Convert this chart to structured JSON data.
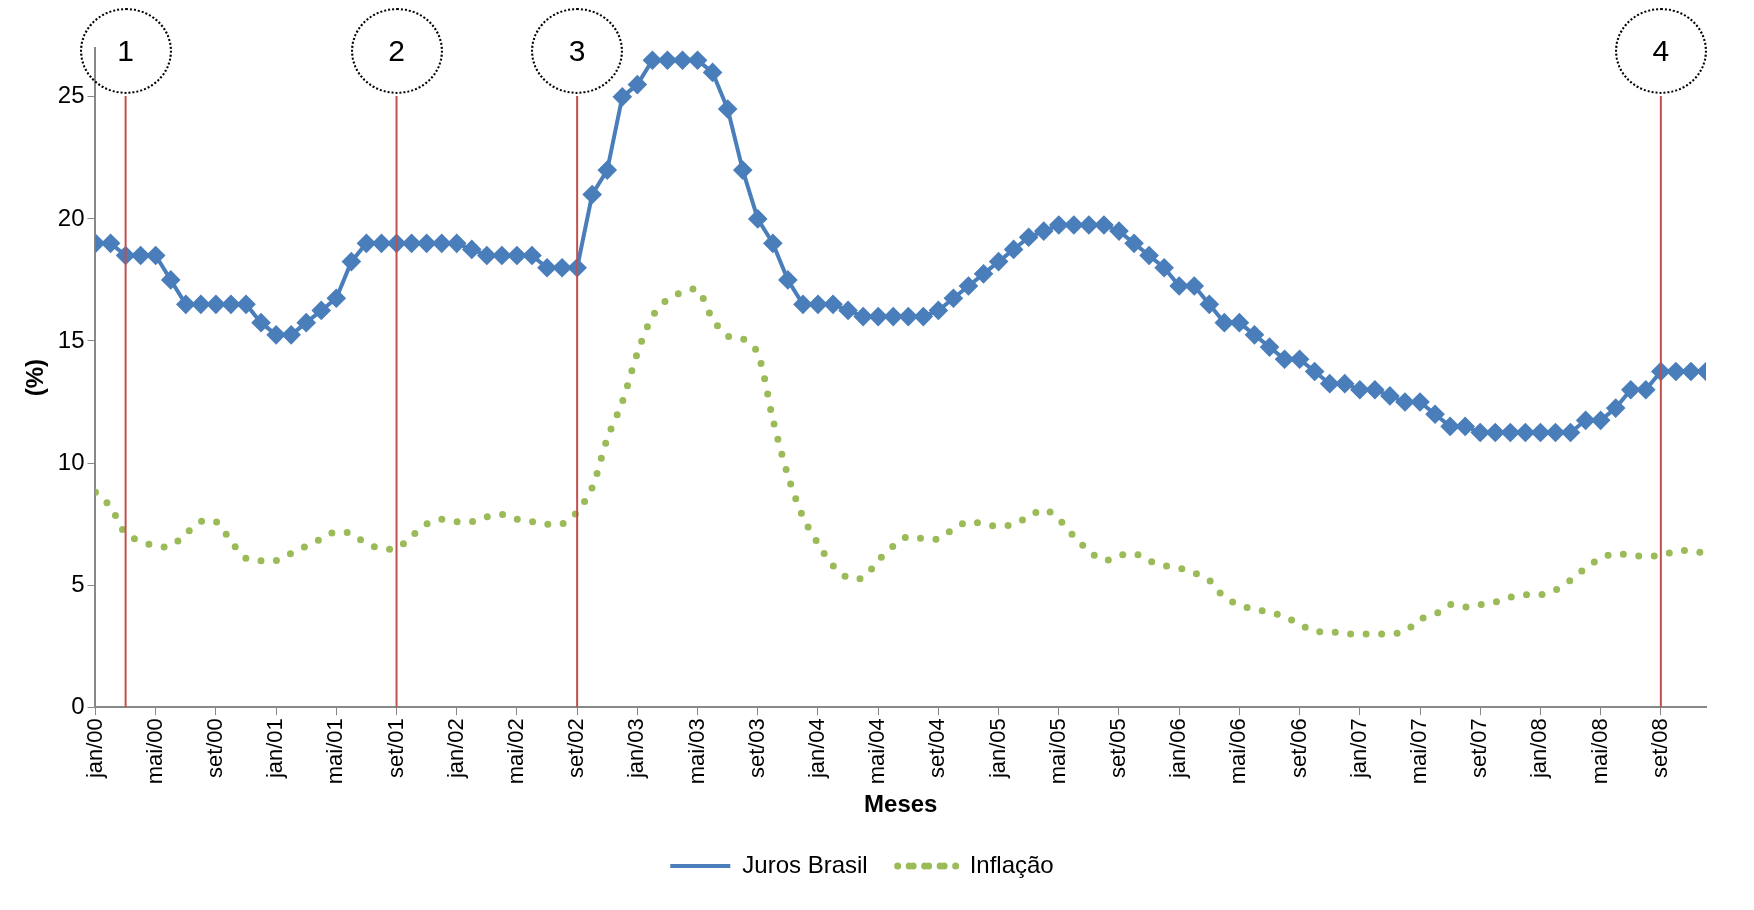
{
  "chart_data": {
    "type": "line",
    "xlabel": "Meses",
    "ylabel": "(%)",
    "legend": "bottom",
    "grid": false,
    "x": [
      "2000-01",
      "2000-02",
      "2000-03",
      "2000-04",
      "2000-05",
      "2000-06",
      "2000-07",
      "2000-08",
      "2000-09",
      "2000-10",
      "2000-11",
      "2000-12",
      "2001-01",
      "2001-02",
      "2001-03",
      "2001-04",
      "2001-05",
      "2001-06",
      "2001-07",
      "2001-08",
      "2001-09",
      "2001-10",
      "2001-11",
      "2001-12",
      "2002-01",
      "2002-02",
      "2002-03",
      "2002-04",
      "2002-05",
      "2002-06",
      "2002-07",
      "2002-08",
      "2002-09",
      "2002-10",
      "2002-11",
      "2002-12",
      "2003-01",
      "2003-02",
      "2003-03",
      "2003-04",
      "2003-05",
      "2003-06",
      "2003-07",
      "2003-08",
      "2003-09",
      "2003-10",
      "2003-11",
      "2003-12",
      "2004-01",
      "2004-02",
      "2004-03",
      "2004-04",
      "2004-05",
      "2004-06",
      "2004-07",
      "2004-08",
      "2004-09",
      "2004-10",
      "2004-11",
      "2004-12",
      "2005-01",
      "2005-02",
      "2005-03",
      "2005-04",
      "2005-05",
      "2005-06",
      "2005-07",
      "2005-08",
      "2005-09",
      "2005-10",
      "2005-11",
      "2005-12",
      "2006-01",
      "2006-02",
      "2006-03",
      "2006-04",
      "2006-05",
      "2006-06",
      "2006-07",
      "2006-08",
      "2006-09",
      "2006-10",
      "2006-11",
      "2006-12",
      "2007-01",
      "2007-02",
      "2007-03",
      "2007-04",
      "2007-05",
      "2007-06",
      "2007-07",
      "2007-08",
      "2007-09",
      "2007-10",
      "2007-11",
      "2007-12",
      "2008-01",
      "2008-02",
      "2008-03",
      "2008-04",
      "2008-05",
      "2008-06",
      "2008-07",
      "2008-08",
      "2008-09",
      "2008-10",
      "2008-11",
      "2008-12"
    ],
    "series": [
      {
        "name": "Juros Brasil",
        "color": "#4a7ebb",
        "marker": "diamond",
        "line_style": "solid",
        "values": [
          19,
          19,
          18.5,
          18.5,
          18.5,
          17.5,
          16.5,
          16.5,
          16.5,
          16.5,
          16.5,
          15.75,
          15.25,
          15.25,
          15.75,
          16.25,
          16.75,
          18.25,
          19,
          19,
          19,
          19,
          19,
          19,
          19,
          18.75,
          18.5,
          18.5,
          18.5,
          18.5,
          18,
          18,
          18,
          21,
          22,
          25,
          25.5,
          26.5,
          26.5,
          26.5,
          26.5,
          26,
          24.5,
          22,
          20,
          19,
          17.5,
          16.5,
          16.5,
          16.5,
          16.25,
          16,
          16,
          16,
          16,
          16,
          16.25,
          16.75,
          17.25,
          17.75,
          18.25,
          18.75,
          19.25,
          19.5,
          19.75,
          19.75,
          19.75,
          19.75,
          19.5,
          19,
          18.5,
          18,
          17.25,
          17.25,
          16.5,
          15.75,
          15.75,
          15.25,
          14.75,
          14.25,
          14.25,
          13.75,
          13.25,
          13.25,
          13,
          13,
          12.75,
          12.5,
          12.5,
          12,
          11.5,
          11.5,
          11.25,
          11.25,
          11.25,
          11.25,
          11.25,
          11.25,
          11.25,
          11.75,
          11.75,
          12.25,
          13,
          13,
          13.75,
          13.75,
          13.75,
          13.75
        ]
      },
      {
        "name": "Inflação",
        "color": "#9bbb59",
        "marker": "none",
        "line_style": "dotted",
        "values": [
          8.8,
          8.2,
          7.1,
          6.8,
          6.6,
          6.6,
          7.1,
          7.6,
          7.6,
          6.8,
          6.1,
          6.0,
          6.0,
          6.3,
          6.6,
          6.9,
          7.2,
          7.1,
          6.7,
          6.5,
          6.5,
          7.0,
          7.5,
          7.7,
          7.6,
          7.6,
          7.8,
          7.9,
          7.7,
          7.6,
          7.5,
          7.5,
          8.0,
          9.0,
          11.0,
          12.5,
          14.5,
          16.0,
          16.7,
          17.0,
          17.1,
          15.9,
          15.2,
          15.1,
          14.5,
          11.8,
          9.5,
          7.8,
          6.7,
          5.8,
          5.3,
          5.3,
          6.0,
          6.6,
          7.0,
          6.9,
          6.9,
          7.3,
          7.6,
          7.5,
          7.4,
          7.5,
          7.8,
          8.1,
          7.7,
          7.0,
          6.4,
          6.0,
          6.2,
          6.3,
          6.0,
          5.8,
          5.7,
          5.5,
          5.2,
          4.5,
          4.2,
          4.0,
          3.9,
          3.7,
          3.4,
          3.1,
          3.1,
          3.0,
          3.0,
          3.0,
          3.0,
          3.1,
          3.6,
          3.8,
          4.2,
          4.1,
          4.2,
          4.3,
          4.5,
          4.6,
          4.6,
          4.8,
          5.2,
          5.7,
          6.1,
          6.3,
          6.2,
          6.2,
          6.2,
          6.4,
          6.4,
          6.3
        ]
      }
    ],
    "xlim": [
      "2000-01",
      "2008-12"
    ],
    "xticks": [
      {
        "value": "2000-01",
        "label": "jan/00"
      },
      {
        "value": "2000-05",
        "label": "mai/00"
      },
      {
        "value": "2000-09",
        "label": "set/00"
      },
      {
        "value": "2001-01",
        "label": "jan/01"
      },
      {
        "value": "2001-05",
        "label": "mai/01"
      },
      {
        "value": "2001-09",
        "label": "set/01"
      },
      {
        "value": "2002-01",
        "label": "jan/02"
      },
      {
        "value": "2002-05",
        "label": "mai/02"
      },
      {
        "value": "2002-09",
        "label": "set/02"
      },
      {
        "value": "2003-01",
        "label": "jan/03"
      },
      {
        "value": "2003-05",
        "label": "mai/03"
      },
      {
        "value": "2003-09",
        "label": "set/03"
      },
      {
        "value": "2004-01",
        "label": "jan/04"
      },
      {
        "value": "2004-05",
        "label": "mai/04"
      },
      {
        "value": "2004-09",
        "label": "set/04"
      },
      {
        "value": "2005-01",
        "label": "jan/05"
      },
      {
        "value": "2005-05",
        "label": "mai/05"
      },
      {
        "value": "2005-09",
        "label": "set/05"
      },
      {
        "value": "2006-01",
        "label": "jan/06"
      },
      {
        "value": "2006-05",
        "label": "mai/06"
      },
      {
        "value": "2006-09",
        "label": "set/06"
      },
      {
        "value": "2007-01",
        "label": "jan/07"
      },
      {
        "value": "2007-05",
        "label": "mai/07"
      },
      {
        "value": "2007-09",
        "label": "set/07"
      },
      {
        "value": "2008-01",
        "label": "jan/08"
      },
      {
        "value": "2008-05",
        "label": "mai/08"
      },
      {
        "value": "2008-09",
        "label": "set/08"
      }
    ],
    "ylim": [
      0,
      27
    ],
    "yticks": [
      0,
      5,
      10,
      15,
      20,
      25
    ],
    "ref_lines": [
      {
        "axis": "x",
        "value": "2000-03",
        "label": "1",
        "color": "#c0504d"
      },
      {
        "axis": "x",
        "value": "2001-09",
        "label": "2",
        "color": "#c0504d"
      },
      {
        "axis": "x",
        "value": "2002-09",
        "label": "3",
        "color": "#c0504d"
      },
      {
        "axis": "x",
        "value": "2008-09",
        "label": "4",
        "color": "#c0504d"
      }
    ]
  }
}
